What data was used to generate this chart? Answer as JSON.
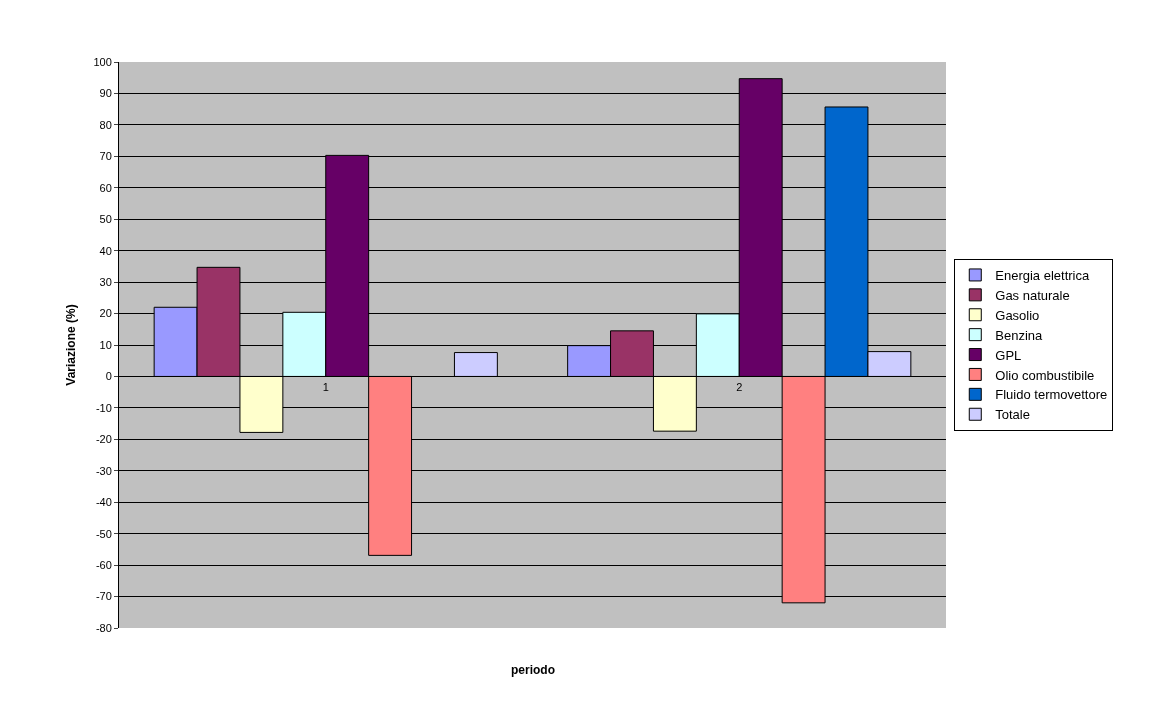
{
  "chart_data": {
    "type": "bar",
    "xlabel": "periodo",
    "ylabel": "Variazione (%)",
    "categories": [
      "1",
      "2"
    ],
    "series": [
      {
        "name": "Energia elettrica",
        "color": "#9999ff",
        "values": [
          22.0,
          9.8
        ]
      },
      {
        "name": "Gas naturale",
        "color": "#993366",
        "values": [
          34.7,
          14.5
        ]
      },
      {
        "name": "Gasolio",
        "color": "#ffffcc",
        "values": [
          -17.8,
          -17.4
        ]
      },
      {
        "name": "Benzina",
        "color": "#ccffff",
        "values": [
          20.4,
          19.9
        ]
      },
      {
        "name": "GPL",
        "color": "#660066",
        "values": [
          70.3,
          94.7
        ]
      },
      {
        "name": "Olio combustibile",
        "color": "#ff8080",
        "values": [
          -56.9,
          -72.0
        ]
      },
      {
        "name": "Fluido termovettore",
        "color": "#0066cc",
        "values": [
          null,
          85.7
        ]
      },
      {
        "name": "Totale",
        "color": "#ccccff",
        "values": [
          7.6,
          7.9
        ]
      }
    ],
    "ylim": [
      -80,
      100
    ],
    "yticks": [
      -80,
      -70,
      -60,
      -50,
      -40,
      -30,
      -20,
      -10,
      0,
      10,
      20,
      30,
      40,
      50,
      60,
      70,
      80,
      90,
      100
    ],
    "grid": "y",
    "legend": "right"
  }
}
